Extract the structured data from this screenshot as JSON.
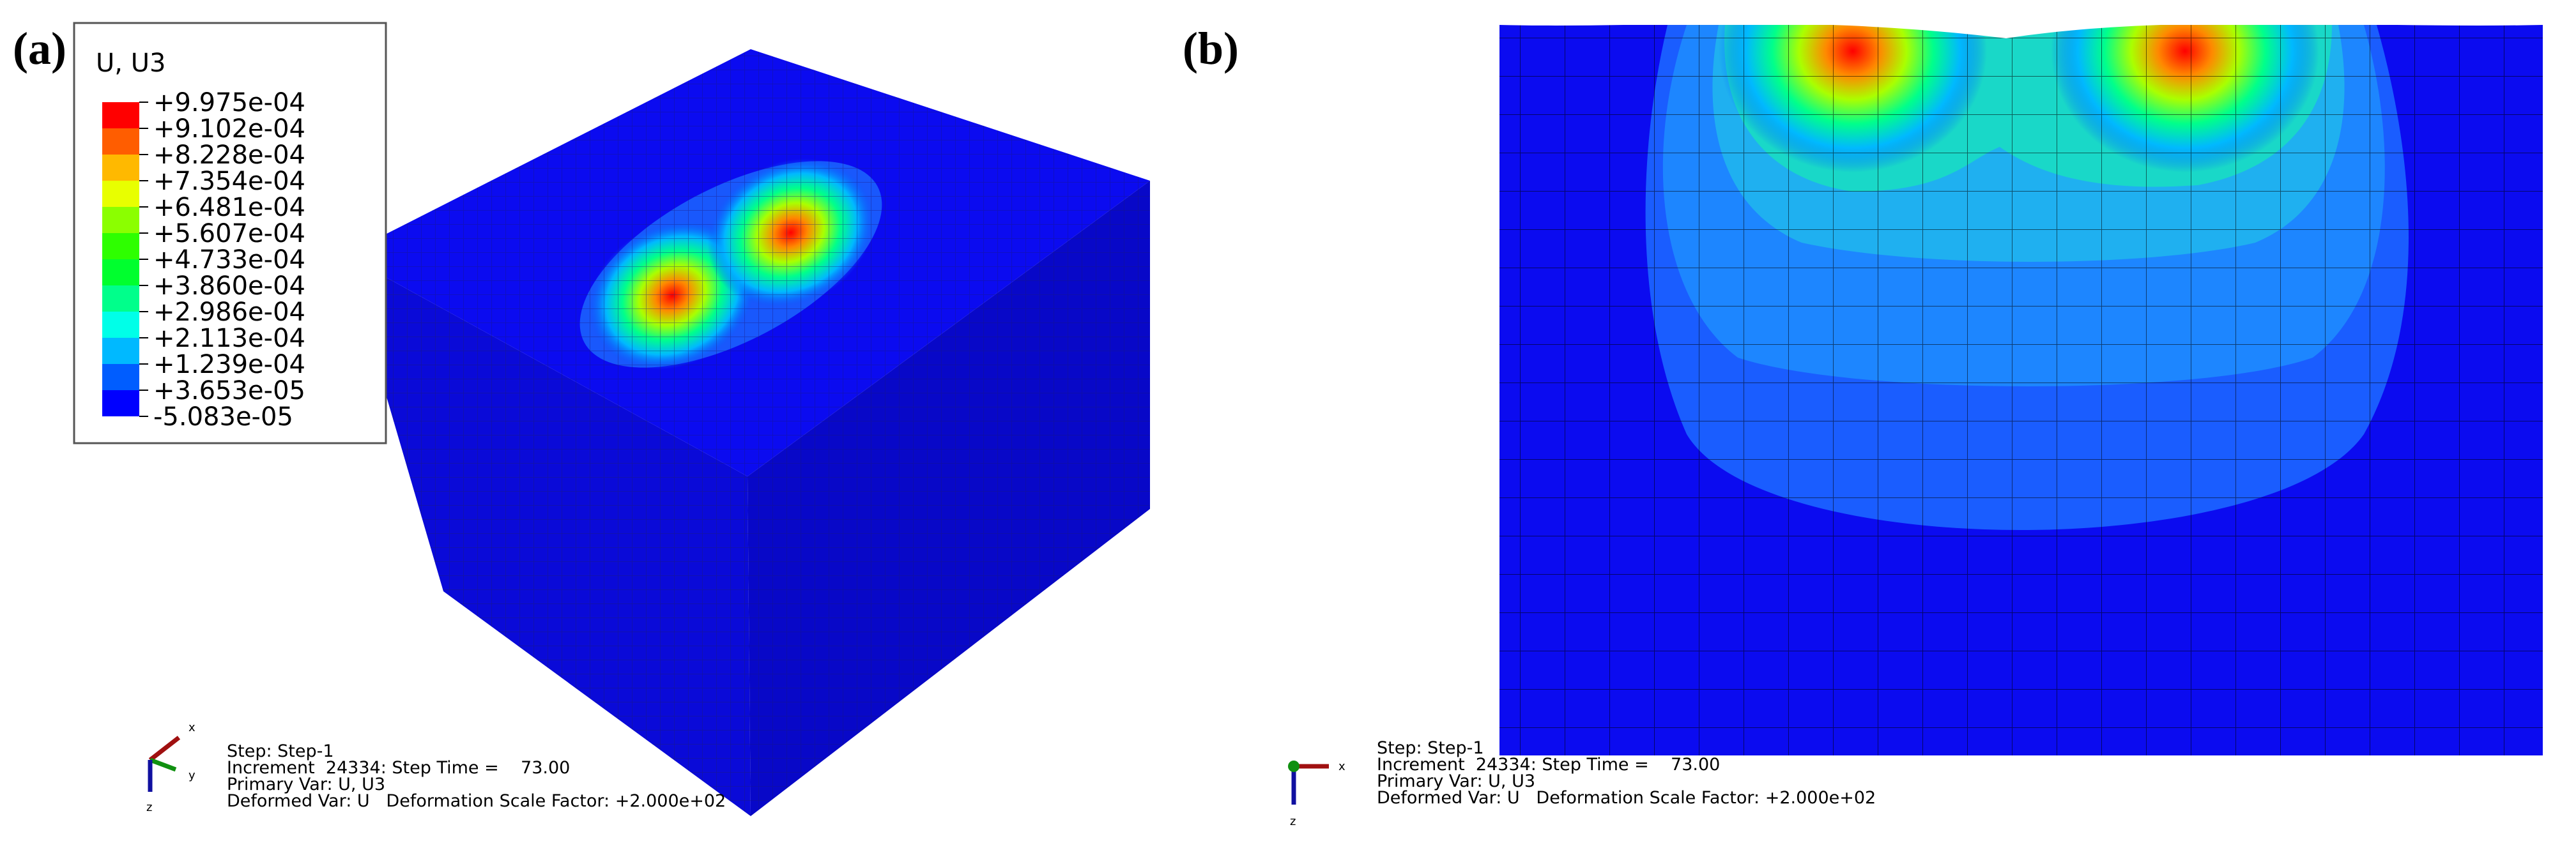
{
  "panel_a": {
    "label": "(a)",
    "legend": {
      "title": "U, U3",
      "labels": [
        "+9.975e-04",
        "+9.102e-04",
        "+8.228e-04",
        "+7.354e-04",
        "+6.481e-04",
        "+5.607e-04",
        "+4.733e-04",
        "+3.860e-04",
        "+2.986e-04",
        "+2.113e-04",
        "+1.239e-04",
        "+3.653e-05",
        "-5.083e-05"
      ],
      "colors": [
        "#ff0000",
        "#ff5d00",
        "#ffb900",
        "#e8ff00",
        "#8bff00",
        "#2eff00",
        "#00ff2e",
        "#00ff8b",
        "#00ffe8",
        "#00b9ff",
        "#005dff",
        "#0000ff"
      ]
    },
    "info": [
      "Step: Step-1",
      "Increment  24334: Step Time =    73.00",
      "Primary Var: U, U3",
      "Deformed Var: U   Deformation Scale Factor: +2.000e+02"
    ],
    "axes": [
      "x",
      "y",
      "z"
    ]
  },
  "panel_b": {
    "label": "(b)",
    "info": [
      "Step: Step-1",
      "Increment  24334: Step Time =    73.00",
      "Primary Var: U, U3",
      "Deformed Var: U   Deformation Scale Factor: +2.000e+02"
    ],
    "axes": [
      "x",
      "z"
    ]
  }
}
